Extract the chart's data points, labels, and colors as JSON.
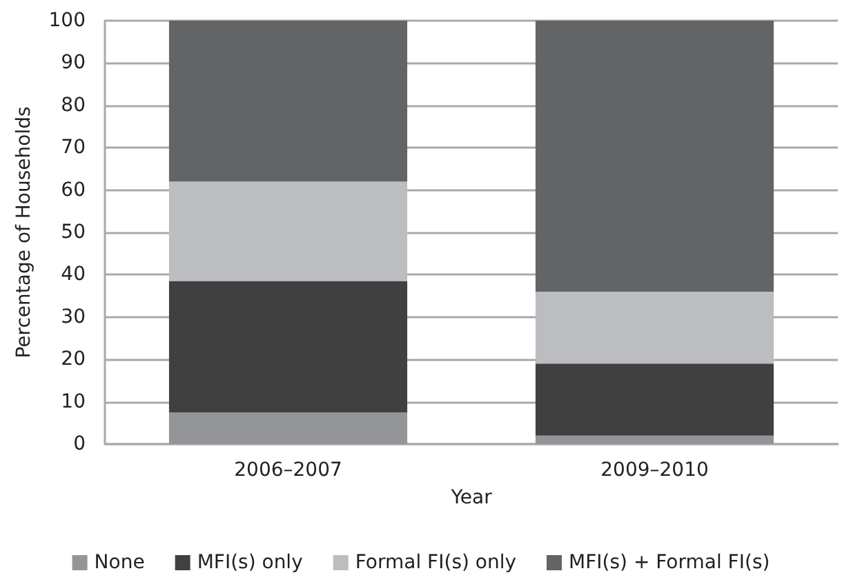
{
  "chart_data": {
    "type": "bar",
    "stacked": true,
    "xlabel": "Year",
    "ylabel": "Percentage of Households",
    "categories": [
      "2006–2007",
      "2009–2010"
    ],
    "series": [
      {
        "name": "None",
        "color": "#939598",
        "values": [
          7.5,
          2
        ]
      },
      {
        "name": "MFI(s) only",
        "color": "#404040",
        "values": [
          31,
          17
        ]
      },
      {
        "name": "Formal FI(s) only",
        "color": "#bcbdc0",
        "values": [
          23.5,
          17
        ]
      },
      {
        "name": "MFI(s) + Formal FI(s)",
        "color": "#636466",
        "values": [
          38,
          64
        ]
      }
    ],
    "ylim": [
      0,
      100
    ],
    "yticks": [
      0,
      10,
      20,
      30,
      40,
      50,
      60,
      70,
      80,
      90,
      100
    ],
    "grid": true,
    "legend": "bottom"
  }
}
